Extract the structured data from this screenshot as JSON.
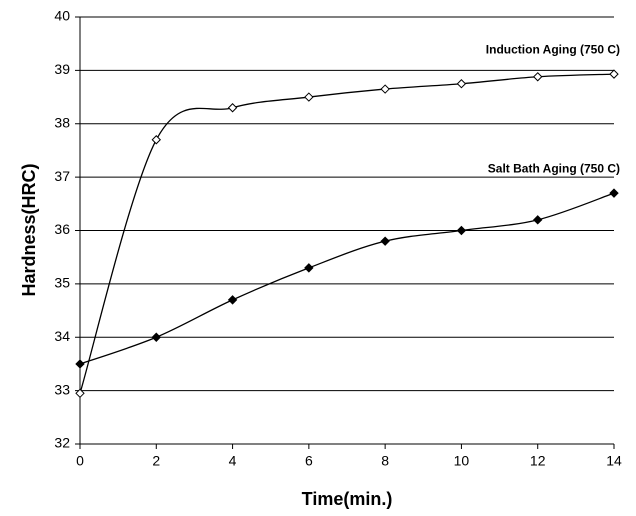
{
  "chart_data": {
    "type": "line",
    "x": [
      0,
      2,
      4,
      6,
      8,
      10,
      12,
      14
    ],
    "series": [
      {
        "name": "Induction Aging (750 C)",
        "color": "#000000",
        "marker": "open-diamond",
        "values": [
          32.95,
          37.7,
          38.3,
          38.5,
          38.65,
          38.75,
          38.88,
          38.93
        ]
      },
      {
        "name": "Salt Bath Aging (750 C)",
        "color": "#000000",
        "marker": "filled-diamond",
        "values": [
          33.5,
          34.0,
          34.7,
          35.3,
          35.8,
          36.0,
          36.2,
          36.7
        ]
      }
    ],
    "xlabel": "Time(min.)",
    "ylabel": "Hardness(HRC)",
    "xlim": [
      0,
      14
    ],
    "xticks": [
      0,
      2,
      4,
      6,
      8,
      10,
      12,
      14
    ],
    "ylim": [
      32,
      40
    ],
    "yticks": [
      32,
      33,
      34,
      35,
      36,
      37,
      38,
      39,
      40
    ],
    "grid": true,
    "smooth": true
  }
}
